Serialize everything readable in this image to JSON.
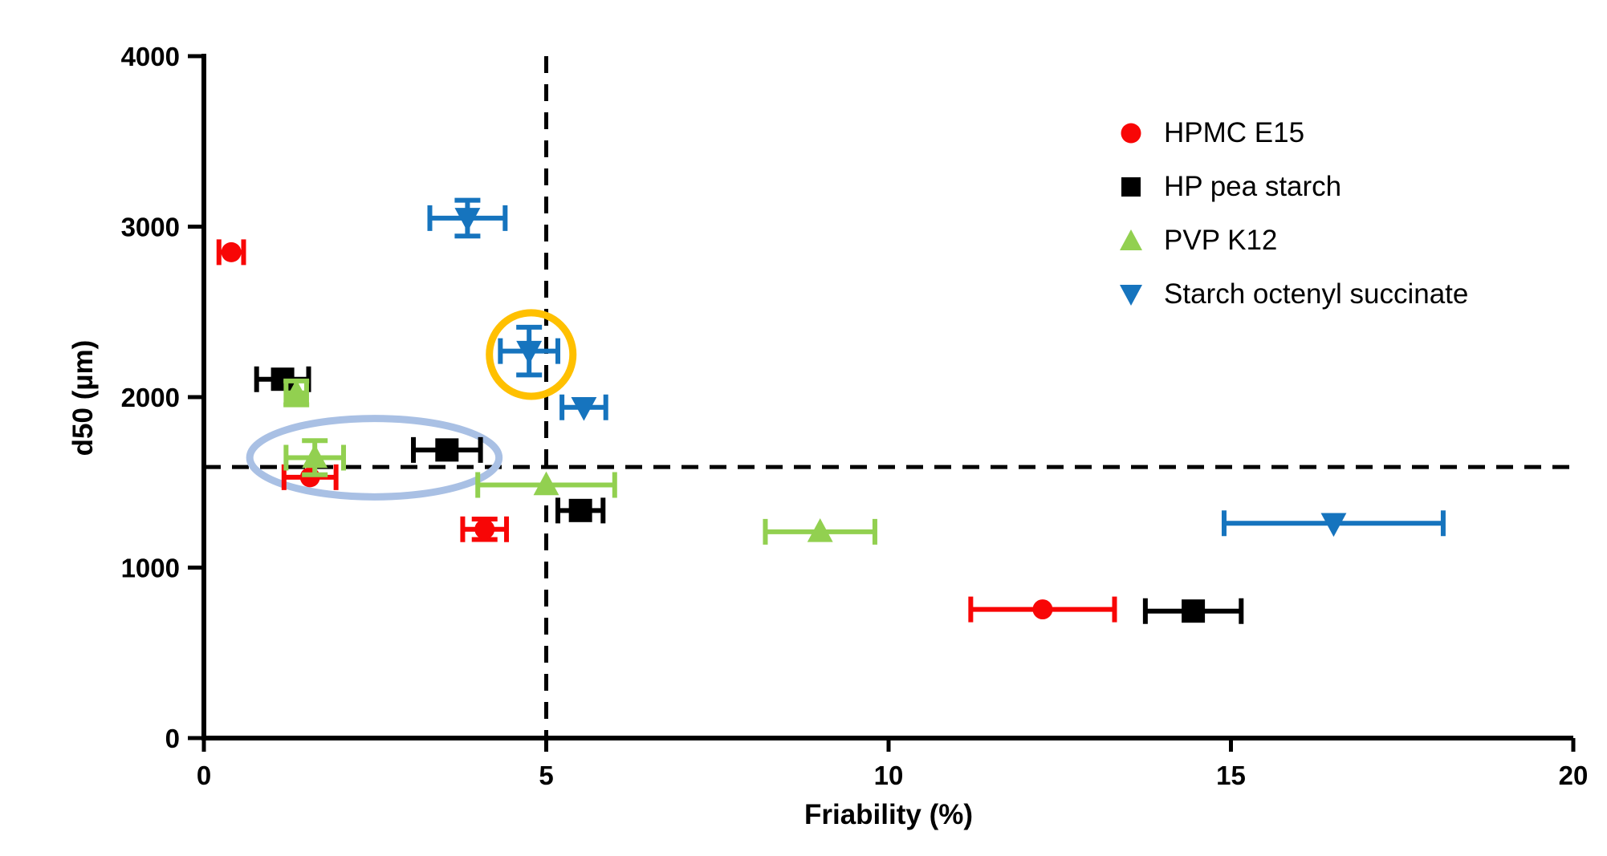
{
  "figure": {
    "background": "#ffffff",
    "axis_color": "#000000",
    "tick_font_size": 33,
    "dashed_line_color": "#000000"
  },
  "chart_data": {
    "type": "scatter",
    "title": "",
    "xlabel": "Friability (%)",
    "ylabel": "d50 (µm)",
    "xlim": [
      0,
      20
    ],
    "ylim": [
      0,
      4000
    ],
    "xticks": [
      "0",
      "5",
      "10",
      "15",
      "20"
    ],
    "xtick_values": [
      0,
      5,
      10,
      15,
      20
    ],
    "yticks": [
      "0",
      "1000",
      "2000",
      "3000",
      "4000"
    ],
    "ytick_values": [
      0,
      1000,
      2000,
      3000,
      4000
    ],
    "grid": false,
    "legend_position": "top-right-inside",
    "series": [
      {
        "name": "HPMC E15",
        "marker": "circle",
        "color": "#F80606",
        "points": [
          {
            "x": 0.4,
            "y": 2850,
            "xerr": 0.18
          },
          {
            "x": 1.55,
            "y": 1530,
            "xerr": 0.38
          },
          {
            "x": 4.1,
            "y": 1225,
            "xerr": 0.32,
            "yerr": 60
          },
          {
            "x": 12.25,
            "y": 755,
            "xerr": 1.05
          }
        ]
      },
      {
        "name": "HP pea starch",
        "marker": "square",
        "color": "#000000",
        "points": [
          {
            "x": 1.15,
            "y": 2105,
            "xerr": 0.38
          },
          {
            "x": 3.55,
            "y": 1690,
            "xerr": 0.49
          },
          {
            "x": 5.5,
            "y": 1335,
            "xerr": 0.33
          },
          {
            "x": 14.45,
            "y": 745,
            "xerr": 0.7
          }
        ]
      },
      {
        "name": "PVP K12",
        "marker": "triangle-up",
        "color": "#92D050",
        "points": [
          {
            "x": 1.35,
            "y": 2025,
            "xerr": 0.15,
            "yerr": 70
          },
          {
            "x": 1.62,
            "y": 1645,
            "xerr": 0.42,
            "yerr": 100
          },
          {
            "x": 5.0,
            "y": 1485,
            "xerr": 1.0
          },
          {
            "x": 9.0,
            "y": 1210,
            "xerr": 0.8
          }
        ]
      },
      {
        "name": "Starch octenyl succinate",
        "marker": "triangle-down",
        "color": "#1674BE",
        "points": [
          {
            "x": 3.85,
            "y": 3050,
            "xerr": 0.55,
            "yerr": 105
          },
          {
            "x": 4.75,
            "y": 2270,
            "xerr": 0.42,
            "yerr": 140
          },
          {
            "x": 5.55,
            "y": 1940,
            "xerr": 0.32
          },
          {
            "x": 16.5,
            "y": 1260,
            "xerr": 1.6
          }
        ]
      }
    ],
    "reference_lines": [
      {
        "axis": "x",
        "value": 5,
        "style": "dashed",
        "color": "#000000"
      },
      {
        "axis": "y",
        "value": 1590,
        "style": "dashed",
        "color": "#000000"
      }
    ],
    "annotations": [
      {
        "type": "circle",
        "x": 4.78,
        "y": 2250,
        "rx_units": 0.61,
        "ry_units": 245,
        "color": "#FFC000",
        "stroke_width": 9,
        "name": "highlight-circle-annotation"
      },
      {
        "type": "ellipse",
        "x": 2.49,
        "y": 1645,
        "rx_units": 1.82,
        "ry_units": 230,
        "color": "#A9C0E4",
        "stroke_width": 9,
        "name": "cluster-ellipse-annotation"
      }
    ]
  }
}
